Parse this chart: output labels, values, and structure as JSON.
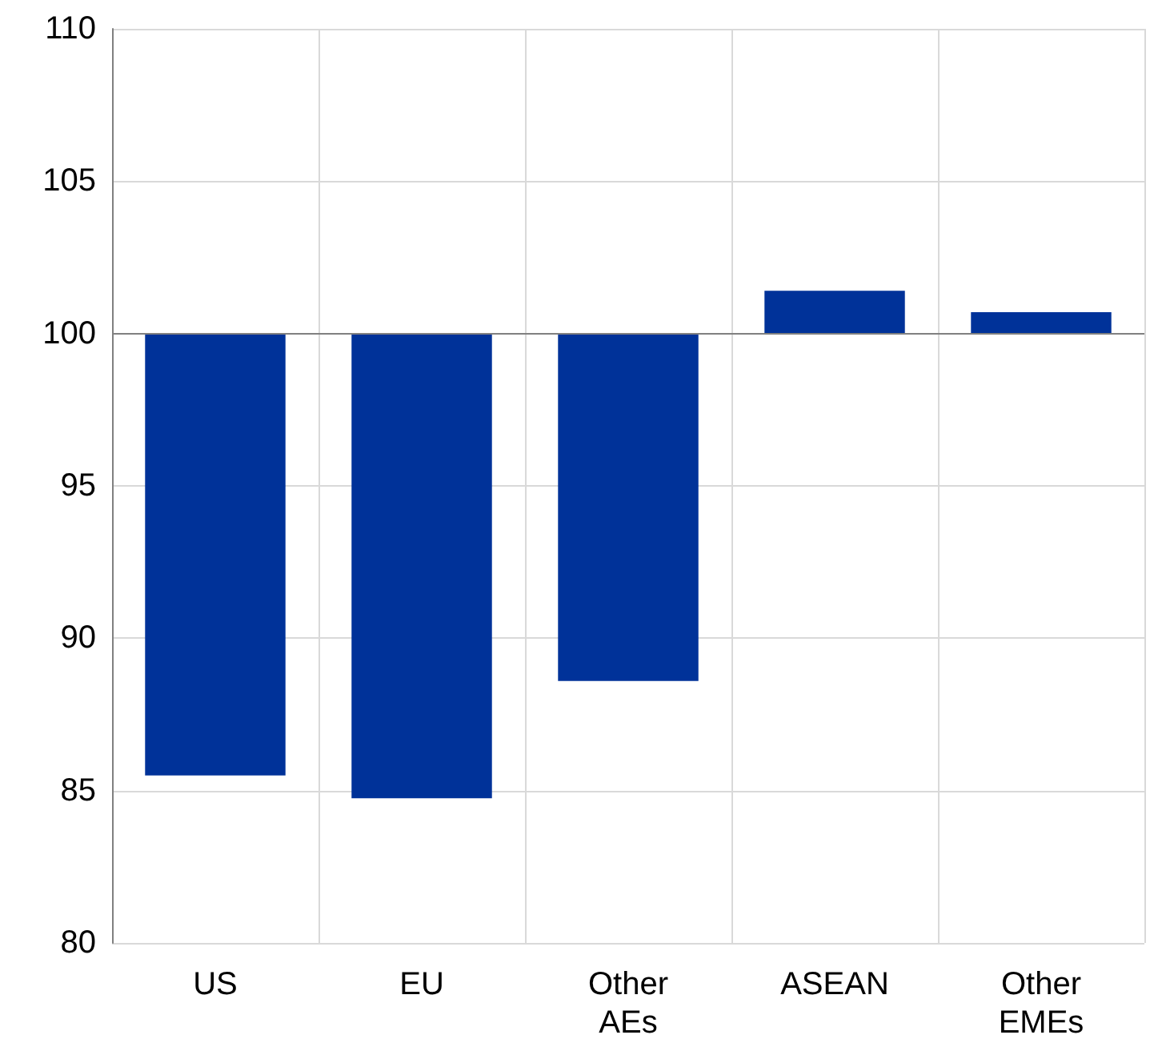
{
  "chart_data": {
    "type": "bar",
    "categories": [
      "US",
      "EU",
      "Other\nAEs",
      "ASEAN",
      "Other\nEMEs"
    ],
    "base": [
      100,
      100,
      100,
      100,
      100
    ],
    "values": [
      -14.5,
      -15.25,
      -11.4,
      1.4,
      0.7
    ],
    "color": "#003299",
    "ylim": [
      80,
      110
    ],
    "yticks": [
      80,
      85,
      90,
      95,
      100,
      105,
      110
    ],
    "grid": true,
    "ref_lines": [
      {
        "axis": "y",
        "value": 100,
        "color": "#808080"
      }
    ]
  }
}
